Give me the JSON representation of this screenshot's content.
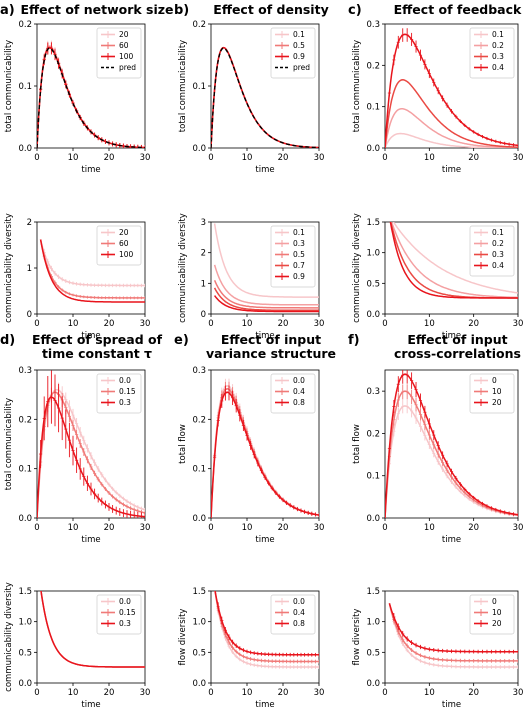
{
  "colors": {
    "series": [
      "#f7c6c9",
      "#f4a0a2",
      "#f07a78",
      "#ea4a44",
      "#e8141c"
    ],
    "pred": "#000000",
    "axes": "#000000"
  },
  "chart_data": [
    {
      "id": "a-top",
      "letter": "a)",
      "title": [
        "Effect of network size"
      ],
      "type": "line",
      "xlabel": "time",
      "ylabel": "total communicability",
      "xlim": [
        0,
        30
      ],
      "ylim": [
        0,
        0.2
      ],
      "xticks": [
        0,
        10,
        20,
        30
      ],
      "yticks": [
        0.0,
        0.1,
        0.2
      ],
      "legend_position": "top-right",
      "series": [
        {
          "name": "20",
          "peak": 0.165,
          "tpeak": 3.5,
          "errorbars": true
        },
        {
          "name": "60",
          "peak": 0.163,
          "tpeak": 3.5,
          "errorbars": true
        },
        {
          "name": "100",
          "peak": 0.162,
          "tpeak": 3.5,
          "errorbars": true
        },
        {
          "name": "pred",
          "peak": 0.161,
          "tpeak": 3.5,
          "dashed": true
        }
      ]
    },
    {
      "id": "b-top",
      "letter": "b)",
      "title": [
        "Effect of density"
      ],
      "type": "line",
      "xlabel": "time",
      "ylabel": "total communicability",
      "xlim": [
        0,
        30
      ],
      "ylim": [
        0,
        0.2
      ],
      "xticks": [
        0,
        10,
        20,
        30
      ],
      "yticks": [
        0.0,
        0.1,
        0.2
      ],
      "legend_position": "top-right",
      "series": [
        {
          "name": "0.1",
          "peak": 0.162,
          "tpeak": 3.5
        },
        {
          "name": "0.5",
          "peak": 0.162,
          "tpeak": 3.5
        },
        {
          "name": "0.9",
          "peak": 0.162,
          "tpeak": 3.5
        },
        {
          "name": "pred",
          "peak": 0.161,
          "tpeak": 3.5,
          "dashed": true
        }
      ]
    },
    {
      "id": "c-top",
      "letter": "c)",
      "title": [
        "Effect of feedback"
      ],
      "type": "line",
      "xlabel": "time",
      "ylabel": "total communicability",
      "xlim": [
        0,
        30
      ],
      "ylim": [
        0,
        0.3
      ],
      "xticks": [
        0,
        10,
        20,
        30
      ],
      "yticks": [
        0.0,
        0.1,
        0.2,
        0.3
      ],
      "legend_position": "top-right",
      "series": [
        {
          "name": "0.1",
          "peak": 0.035,
          "tpeak": 3.5
        },
        {
          "name": "0.2",
          "peak": 0.095,
          "tpeak": 3.8
        },
        {
          "name": "0.3",
          "peak": 0.165,
          "tpeak": 4.0
        },
        {
          "name": "0.4",
          "peak": 0.275,
          "tpeak": 4.5,
          "errorbars": true
        }
      ]
    },
    {
      "id": "a-bot",
      "type": "line",
      "xlabel": "time",
      "ylabel": "communicability diversity",
      "xlim": [
        0,
        30
      ],
      "ylim": [
        0,
        2
      ],
      "xticks": [
        0,
        10,
        20,
        30
      ],
      "yticks": [
        0,
        1,
        2
      ],
      "legend_position": "top-right",
      "series": [
        {
          "name": "20",
          "start": 1.62,
          "end": 0.62,
          "tau": 3.0,
          "errorbars": true
        },
        {
          "name": "60",
          "start": 1.62,
          "end": 0.35,
          "tau": 3.0,
          "errorbars": true
        },
        {
          "name": "100",
          "start": 1.62,
          "end": 0.26,
          "tau": 3.0
        }
      ]
    },
    {
      "id": "b-bot",
      "type": "line",
      "xlabel": "time",
      "ylabel": "communicability diversity",
      "xlim": [
        0,
        30
      ],
      "ylim": [
        0,
        3
      ],
      "xticks": [
        0,
        10,
        20,
        30
      ],
      "yticks": [
        0,
        1,
        2,
        3
      ],
      "legend_position": "top-right",
      "series": [
        {
          "name": "0.1",
          "start": 2.95,
          "end": 0.55,
          "tau": 3.2
        },
        {
          "name": "0.3",
          "start": 1.6,
          "end": 0.3,
          "tau": 3.2
        },
        {
          "name": "0.5",
          "start": 1.1,
          "end": 0.2,
          "tau": 3.2
        },
        {
          "name": "0.7",
          "start": 0.85,
          "end": 0.12,
          "tau": 3.2
        },
        {
          "name": "0.9",
          "start": 0.6,
          "end": 0.08,
          "tau": 3.2
        }
      ]
    },
    {
      "id": "c-bot",
      "type": "line",
      "xlabel": "time",
      "ylabel": "communicability diversity",
      "xlim": [
        0,
        30
      ],
      "ylim": [
        0,
        1.5
      ],
      "xticks": [
        0,
        10,
        20,
        30
      ],
      "yticks": [
        0.0,
        0.5,
        1.0,
        1.5
      ],
      "legend_position": "top-right",
      "series": [
        {
          "name": "0.1",
          "start": 1.6,
          "end": 0.22,
          "tau": 12.0
        },
        {
          "name": "0.2",
          "start": 1.6,
          "end": 0.26,
          "tau": 6.0
        },
        {
          "name": "0.3",
          "start": 1.6,
          "end": 0.26,
          "tau": 4.0
        },
        {
          "name": "0.4",
          "start": 1.6,
          "end": 0.26,
          "tau": 3.0
        }
      ]
    },
    {
      "id": "d-top",
      "letter": "d)",
      "title": [
        "Effect of spread of",
        "time constant τ"
      ],
      "type": "line",
      "xlabel": "time",
      "ylabel": "total communicability",
      "xlim": [
        0,
        30
      ],
      "ylim": [
        0,
        0.3
      ],
      "xticks": [
        0,
        10,
        20,
        30
      ],
      "yticks": [
        0.0,
        0.1,
        0.2,
        0.3
      ],
      "legend_position": "top-right",
      "series": [
        {
          "name": "0.0",
          "peak": 0.26,
          "tpeak": 5.5,
          "errorbars": true
        },
        {
          "name": "0.15",
          "peak": 0.255,
          "tpeak": 5.0,
          "errorbars": true
        },
        {
          "name": "0.3",
          "peak": 0.245,
          "tpeak": 4.0,
          "errorbars": true,
          "bigerr": true
        }
      ]
    },
    {
      "id": "e-top",
      "letter": "e)",
      "title": [
        "Effect of input",
        "variance structure"
      ],
      "type": "line",
      "xlabel": "time",
      "ylabel": "total flow",
      "xlim": [
        0,
        30
      ],
      "ylim": [
        0,
        0.3
      ],
      "xticks": [
        0,
        10,
        20,
        30
      ],
      "yticks": [
        0.0,
        0.1,
        0.2,
        0.3
      ],
      "legend_position": "top-right",
      "series": [
        {
          "name": "0.0",
          "peak": 0.268,
          "tpeak": 4.5,
          "errorbars": true
        },
        {
          "name": "0.4",
          "peak": 0.262,
          "tpeak": 4.5,
          "errorbars": true
        },
        {
          "name": "0.8",
          "peak": 0.255,
          "tpeak": 4.5,
          "errorbars": true
        }
      ]
    },
    {
      "id": "f-top",
      "letter": "f)",
      "title": [
        "Effect of input",
        "cross-correlations"
      ],
      "type": "line",
      "xlabel": "time",
      "ylabel": "total flow",
      "xlim": [
        0,
        30
      ],
      "ylim": [
        0,
        0.35
      ],
      "xticks": [
        0,
        10,
        20,
        30
      ],
      "yticks": [
        0.0,
        0.1,
        0.2,
        0.3
      ],
      "legend_position": "top-right",
      "series": [
        {
          "name": "0",
          "peak": 0.265,
          "tpeak": 4.5,
          "errorbars": true
        },
        {
          "name": "10",
          "peak": 0.3,
          "tpeak": 4.5,
          "errorbars": true
        },
        {
          "name": "20",
          "peak": 0.34,
          "tpeak": 4.5,
          "errorbars": true
        }
      ]
    },
    {
      "id": "d-bot",
      "type": "line",
      "xlabel": "time",
      "ylabel": "communicability diversity",
      "xlim": [
        0,
        30
      ],
      "ylim": [
        0,
        1.5
      ],
      "xticks": [
        0,
        10,
        20,
        30
      ],
      "yticks": [
        0.0,
        0.5,
        1.0,
        1.5
      ],
      "legend_position": "top-right",
      "series": [
        {
          "name": "0.0",
          "start": 1.55,
          "end": 0.26,
          "tau": 3.0
        },
        {
          "name": "0.15",
          "start": 1.55,
          "end": 0.26,
          "tau": 3.0
        },
        {
          "name": "0.3",
          "start": 1.55,
          "end": 0.26,
          "tau": 3.0
        }
      ]
    },
    {
      "id": "e-bot",
      "type": "line",
      "xlabel": "time",
      "ylabel": "flow diversity",
      "xlim": [
        0,
        30
      ],
      "ylim": [
        0,
        1.5
      ],
      "xticks": [
        0,
        10,
        20,
        30
      ],
      "yticks": [
        0.0,
        0.5,
        1.0,
        1.5
      ],
      "legend_position": "top-right",
      "series": [
        {
          "name": "0.0",
          "start": 1.55,
          "end": 0.26,
          "tau": 3.0,
          "errorbars": true
        },
        {
          "name": "0.4",
          "start": 1.55,
          "end": 0.35,
          "tau": 3.0,
          "errorbars": true
        },
        {
          "name": "0.8",
          "start": 1.55,
          "end": 0.46,
          "tau": 3.0,
          "errorbars": true
        }
      ]
    },
    {
      "id": "f-bot",
      "type": "line",
      "xlabel": "time",
      "ylabel": "flow diversity",
      "xlim": [
        0,
        30
      ],
      "ylim": [
        0,
        1.5
      ],
      "xticks": [
        0,
        10,
        20,
        30
      ],
      "yticks": [
        0.0,
        0.5,
        1.0,
        1.5
      ],
      "legend_position": "top-right",
      "series": [
        {
          "name": "0",
          "start": 1.3,
          "end": 0.26,
          "tau": 3.0,
          "errorbars": true
        },
        {
          "name": "10",
          "start": 1.3,
          "end": 0.36,
          "tau": 3.0,
          "errorbars": true
        },
        {
          "name": "20",
          "start": 1.3,
          "end": 0.51,
          "tau": 3.0,
          "errorbars": true
        }
      ]
    }
  ]
}
